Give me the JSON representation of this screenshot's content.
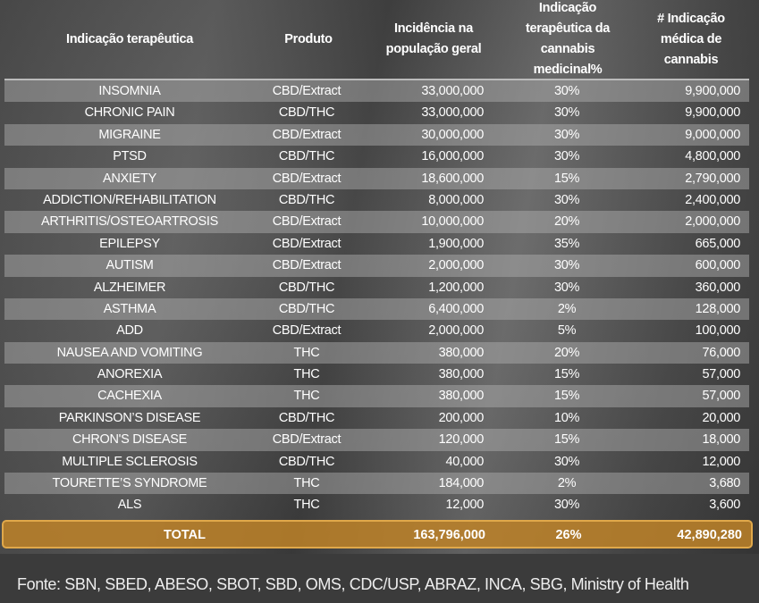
{
  "headers": [
    "Indicação terapêutica",
    "Produto",
    "Incidência na população geral",
    "Indicação terapêutica da cannabis medicinal%",
    "# Indicação médica de cannabis"
  ],
  "rows": [
    [
      "INSOMNIA",
      "CBD/Extract",
      "33,000,000",
      "30%",
      "9,900,000"
    ],
    [
      "CHRONIC PAIN",
      "CBD/THC",
      "33,000,000",
      "30%",
      "9,900,000"
    ],
    [
      "MIGRAINE",
      "CBD/Extract",
      "30,000,000",
      "30%",
      "9,000,000"
    ],
    [
      "PTSD",
      "CBD/THC",
      "16,000,000",
      "30%",
      "4,800,000"
    ],
    [
      "ANXIETY",
      "CBD/Extract",
      "18,600,000",
      "15%",
      "2,790,000"
    ],
    [
      "ADDICTION/REHABILITATION",
      "CBD/THC",
      "8,000,000",
      "30%",
      "2,400,000"
    ],
    [
      "ARTHRITIS/OSTEOARTROSIS",
      "CBD/Extract",
      "10,000,000",
      "20%",
      "2,000,000"
    ],
    [
      "EPILEPSY",
      "CBD/Extract",
      "1,900,000",
      "35%",
      "665,000"
    ],
    [
      "AUTISM",
      "CBD/Extract",
      "2,000,000",
      "30%",
      "600,000"
    ],
    [
      "ALZHEIMER",
      "CBD/THC",
      "1,200,000",
      "30%",
      "360,000"
    ],
    [
      "ASTHMA",
      "CBD/THC",
      "6,400,000",
      "2%",
      "128,000"
    ],
    [
      "ADD",
      "CBD/Extract",
      "2,000,000",
      "5%",
      "100,000"
    ],
    [
      "NAUSEA AND VOMITING",
      "THC",
      "380,000",
      "20%",
      "76,000"
    ],
    [
      "ANOREXIA",
      "THC",
      "380,000",
      "15%",
      "57,000"
    ],
    [
      "CACHEXIA",
      "THC",
      "380,000",
      "15%",
      "57,000"
    ],
    [
      "PARKINSON’S DISEASE",
      "CBD/THC",
      "200,000",
      "10%",
      "20,000"
    ],
    [
      "CHRON'S DISEASE",
      "CBD/Extract",
      "120,000",
      "15%",
      "18,000"
    ],
    [
      "MULTIPLE SCLEROSIS",
      "CBD/THC",
      "40,000",
      "30%",
      "12,000"
    ],
    [
      "TOURETTE’S SYNDROME",
      "THC",
      "184,000",
      "2%",
      "3,680"
    ],
    [
      "ALS",
      "THC",
      "12,000",
      "30%",
      "3,600"
    ]
  ],
  "total": {
    "label": "TOTAL",
    "incidence": "163,796,000",
    "percent": "26%",
    "count": "42,890,280"
  },
  "source": "Fonte: SBN, SBED, ABESO, SBOT, SBD, OMS, CDC/USP, ABRAZ, INCA, SBG, Ministry of Health",
  "colors": {
    "total_fill": "#be8228",
    "total_border": "#e0a84a",
    "stripe": "#b4b4b4"
  }
}
